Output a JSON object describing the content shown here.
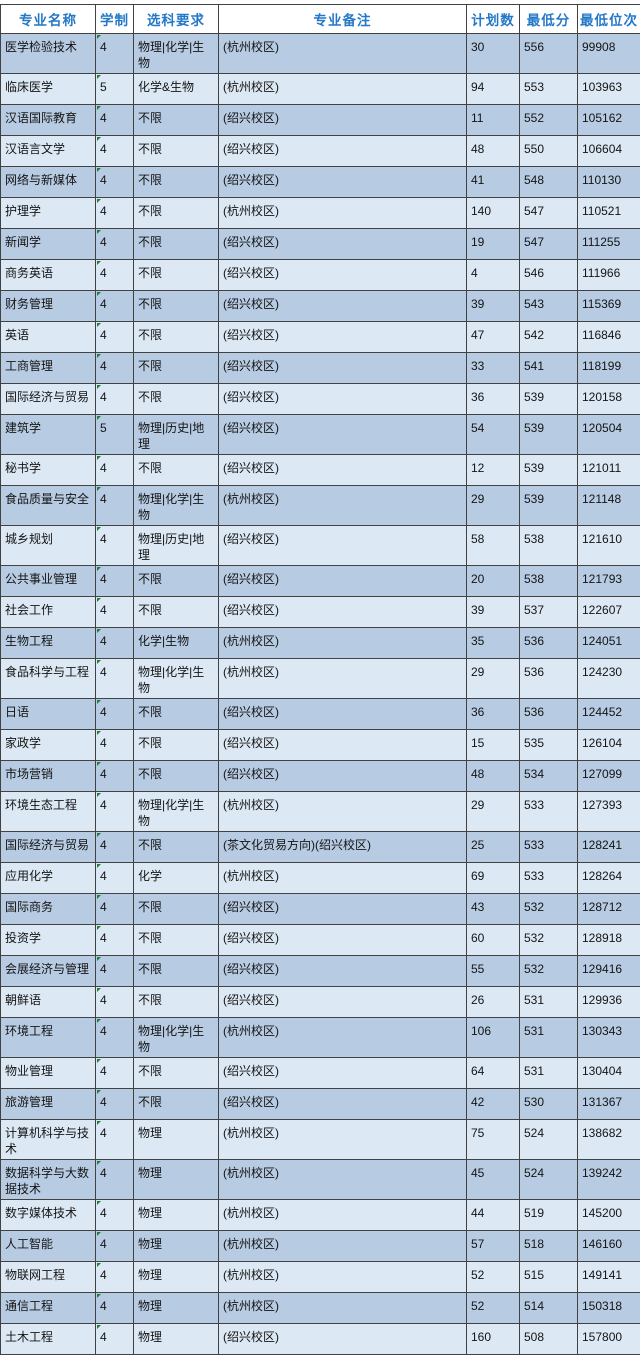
{
  "colors": {
    "header_text": "#2478C8",
    "row_odd_bg": "#B7CBE3",
    "row_even_bg": "#DCE8F4",
    "border": "#424242",
    "cell_text": "#141414",
    "indicator_green": "#1E7E34"
  },
  "table": {
    "columns": [
      {
        "key": "major-name",
        "label": "专业名称"
      },
      {
        "key": "duration",
        "label": "学制"
      },
      {
        "key": "subject-requirement",
        "label": "选科要求"
      },
      {
        "key": "remark",
        "label": "专业备注"
      },
      {
        "key": "plan-count",
        "label": "计划数"
      },
      {
        "key": "min-score",
        "label": "最低分"
      },
      {
        "key": "min-rank",
        "label": "最低位次"
      }
    ],
    "rows": [
      [
        "医学检验技术",
        "4",
        "物理|化学|生物",
        "(杭州校区)",
        "30",
        "556",
        "99908"
      ],
      [
        "临床医学",
        "5",
        "化学&生物",
        "(杭州校区)",
        "94",
        "553",
        "103963"
      ],
      [
        "汉语国际教育",
        "4",
        "不限",
        "(绍兴校区)",
        "11",
        "552",
        "105162"
      ],
      [
        "汉语言文学",
        "4",
        "不限",
        "(绍兴校区)",
        "48",
        "550",
        "106604"
      ],
      [
        "网络与新媒体",
        "4",
        "不限",
        "(绍兴校区)",
        "41",
        "548",
        "110130"
      ],
      [
        "护理学",
        "4",
        "不限",
        "(杭州校区)",
        "140",
        "547",
        "110521"
      ],
      [
        "新闻学",
        "4",
        "不限",
        "(绍兴校区)",
        "19",
        "547",
        "111255"
      ],
      [
        "商务英语",
        "4",
        "不限",
        "(绍兴校区)",
        "4",
        "546",
        "111966"
      ],
      [
        "财务管理",
        "4",
        "不限",
        "(绍兴校区)",
        "39",
        "543",
        "115369"
      ],
      [
        "英语",
        "4",
        "不限",
        "(绍兴校区)",
        "47",
        "542",
        "116846"
      ],
      [
        "工商管理",
        "4",
        "不限",
        "(绍兴校区)",
        "33",
        "541",
        "118199"
      ],
      [
        "国际经济与贸易",
        "4",
        "不限",
        "(绍兴校区)",
        "36",
        "539",
        "120158"
      ],
      [
        "建筑学",
        "5",
        "物理|历史|地理",
        "(绍兴校区)",
        "54",
        "539",
        "120504"
      ],
      [
        "秘书学",
        "4",
        "不限",
        "(绍兴校区)",
        "12",
        "539",
        "121011"
      ],
      [
        "食品质量与安全",
        "4",
        "物理|化学|生物",
        "(杭州校区)",
        "29",
        "539",
        "121148"
      ],
      [
        "城乡规划",
        "4",
        "物理|历史|地理",
        "(绍兴校区)",
        "58",
        "538",
        "121610"
      ],
      [
        "公共事业管理",
        "4",
        "不限",
        "(绍兴校区)",
        "20",
        "538",
        "121793"
      ],
      [
        "社会工作",
        "4",
        "不限",
        "(绍兴校区)",
        "39",
        "537",
        "122607"
      ],
      [
        "生物工程",
        "4",
        "化学|生物",
        "(杭州校区)",
        "35",
        "536",
        "124051"
      ],
      [
        "食品科学与工程",
        "4",
        "物理|化学|生物",
        "(杭州校区)",
        "29",
        "536",
        "124230"
      ],
      [
        "日语",
        "4",
        "不限",
        "(绍兴校区)",
        "36",
        "536",
        "124452"
      ],
      [
        "家政学",
        "4",
        "不限",
        "(绍兴校区)",
        "15",
        "535",
        "126104"
      ],
      [
        "市场营销",
        "4",
        "不限",
        "(绍兴校区)",
        "48",
        "534",
        "127099"
      ],
      [
        "环境生态工程",
        "4",
        "物理|化学|生物",
        "(杭州校区)",
        "29",
        "533",
        "127393"
      ],
      [
        "国际经济与贸易",
        "4",
        "不限",
        "(茶文化贸易方向)(绍兴校区)",
        "25",
        "533",
        "128241"
      ],
      [
        "应用化学",
        "4",
        "化学",
        "(杭州校区)",
        "69",
        "533",
        "128264"
      ],
      [
        "国际商务",
        "4",
        "不限",
        "(绍兴校区)",
        "43",
        "532",
        "128712"
      ],
      [
        "投资学",
        "4",
        "不限",
        "(绍兴校区)",
        "60",
        "532",
        "128918"
      ],
      [
        "会展经济与管理",
        "4",
        "不限",
        "(绍兴校区)",
        "55",
        "532",
        "129416"
      ],
      [
        "朝鲜语",
        "4",
        "不限",
        "(绍兴校区)",
        "26",
        "531",
        "129936"
      ],
      [
        "环境工程",
        "4",
        "物理|化学|生物",
        "(杭州校区)",
        "106",
        "531",
        "130343"
      ],
      [
        "物业管理",
        "4",
        "不限",
        "(绍兴校区)",
        "64",
        "531",
        "130404"
      ],
      [
        "旅游管理",
        "4",
        "不限",
        "(绍兴校区)",
        "42",
        "530",
        "131367"
      ],
      [
        "计算机科学与技术",
        "4",
        "物理",
        "(杭州校区)",
        "75",
        "524",
        "138682"
      ],
      [
        "数据科学与大数据技术",
        "4",
        "物理",
        "(杭州校区)",
        "45",
        "524",
        "139242"
      ],
      [
        "数字媒体技术",
        "4",
        "物理",
        "(杭州校区)",
        "44",
        "519",
        "145200"
      ],
      [
        "人工智能",
        "4",
        "物理",
        "(杭州校区)",
        "57",
        "518",
        "146160"
      ],
      [
        "物联网工程",
        "4",
        "物理",
        "(杭州校区)",
        "52",
        "515",
        "149141"
      ],
      [
        "通信工程",
        "4",
        "物理",
        "(杭州校区)",
        "52",
        "514",
        "150318"
      ],
      [
        "土木工程",
        "4",
        "物理",
        "(绍兴校区)",
        "160",
        "508",
        "157800"
      ]
    ]
  }
}
